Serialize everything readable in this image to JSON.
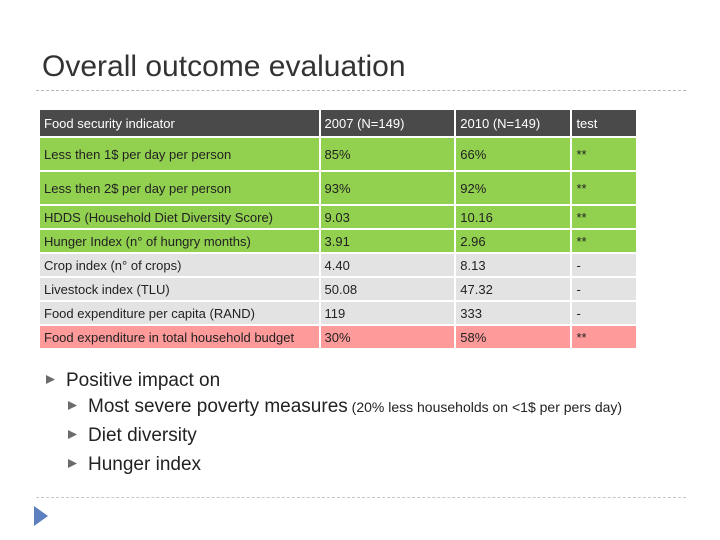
{
  "title": "Overall outcome evaluation",
  "table": {
    "headers": [
      "Food security indicator",
      "2007 (N=149)",
      "2010 (N=149)",
      "test"
    ],
    "rows": [
      {
        "cells": [
          "Less then 1$ per day per person",
          "85%",
          "66%",
          "**"
        ],
        "color": "green"
      },
      {
        "cells": [
          "Less then 2$ per day per person",
          "93%",
          "92%",
          "**"
        ],
        "color": "green"
      },
      {
        "cells": [
          "HDDS (Household Diet Diversity Score)",
          "9.03",
          "10.16",
          "**"
        ],
        "color": "green"
      },
      {
        "cells": [
          "Hunger Index (n° of hungry months)",
          "3.91",
          "2.96",
          "**"
        ],
        "color": "green"
      },
      {
        "cells": [
          "Crop index (n° of crops)",
          "4.40",
          "8.13",
          "-"
        ],
        "color": "gray"
      },
      {
        "cells": [
          "Livestock index (TLU)",
          "50.08",
          "47.32",
          "-"
        ],
        "color": "gray"
      },
      {
        "cells": [
          "Food expenditure per capita (RAND)",
          "119",
          "333",
          "-"
        ],
        "color": "gray"
      },
      {
        "cells": [
          "Food expenditure in total household budget",
          "30%",
          "58%",
          "**"
        ],
        "color": "pink"
      }
    ]
  },
  "bullets": {
    "main": "Positive impact on",
    "sub": [
      {
        "text": "Most severe poverty measures",
        "note": " (20% less households on <1$ per pers day)"
      },
      {
        "text": "Diet diversity",
        "note": ""
      },
      {
        "text": "Hunger index",
        "note": ""
      }
    ]
  },
  "colors": {
    "header": "#4a4a4a",
    "green": "#92d050",
    "gray": "#e3e3e3",
    "pink": "#ff9a9a",
    "nav": "#5b7fbf"
  },
  "icons": [
    "bullet-icon",
    "nav-arrow-icon"
  ]
}
